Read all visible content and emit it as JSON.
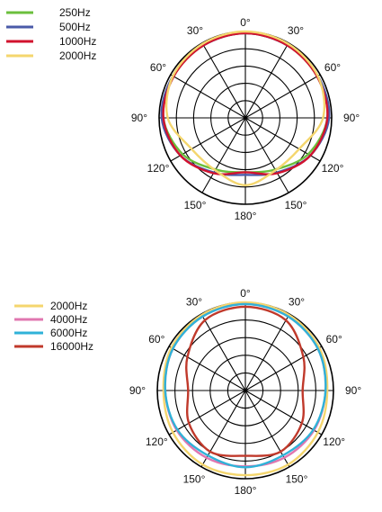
{
  "chart_data": [
    {
      "type": "polar",
      "title": "",
      "angle_unit": "deg",
      "angle_ticks": [
        {
          "deg": 0,
          "label": "0°"
        },
        {
          "deg": 30,
          "label": "30°"
        },
        {
          "deg": 60,
          "label": "60°"
        },
        {
          "deg": 90,
          "label": "90°"
        },
        {
          "deg": 120,
          "label": "120°"
        },
        {
          "deg": 150,
          "label": "150°"
        },
        {
          "deg": 180,
          "label": "180°"
        },
        {
          "deg": 210,
          "label": "150°"
        },
        {
          "deg": 240,
          "label": "120°"
        },
        {
          "deg": 270,
          "label": "90°"
        },
        {
          "deg": 300,
          "label": "60°"
        },
        {
          "deg": 330,
          "label": "30°"
        }
      ],
      "rings": 5,
      "spokes": 12,
      "grid": true,
      "legend_position": "top-left",
      "angles": [
        0,
        30,
        60,
        90,
        120,
        150,
        180,
        210,
        240,
        270,
        300,
        330
      ],
      "series": [
        {
          "name": "250Hz",
          "color": "#6bbf3c",
          "values": [
            0.98,
            0.97,
            0.96,
            0.95,
            0.84,
            0.69,
            0.63,
            0.69,
            0.84,
            0.95,
            0.96,
            0.97
          ]
        },
        {
          "name": "500Hz",
          "color": "#4a5aa8",
          "values": [
            0.98,
            0.97,
            0.97,
            0.97,
            0.87,
            0.73,
            0.66,
            0.73,
            0.87,
            0.97,
            0.97,
            0.97
          ]
        },
        {
          "name": "1000Hz",
          "color": "#d2122e",
          "values": [
            0.98,
            0.97,
            0.96,
            0.95,
            0.87,
            0.74,
            0.63,
            0.74,
            0.87,
            0.95,
            0.96,
            0.97
          ]
        },
        {
          "name": "2000Hz",
          "color": "#f4d66e",
          "values": [
            1.0,
            0.99,
            0.97,
            0.9,
            0.72,
            0.7,
            0.78,
            0.7,
            0.72,
            0.9,
            0.97,
            0.99
          ]
        }
      ]
    },
    {
      "type": "polar",
      "title": "",
      "angle_unit": "deg",
      "angle_ticks": [
        {
          "deg": 0,
          "label": "0°"
        },
        {
          "deg": 30,
          "label": "30°"
        },
        {
          "deg": 60,
          "label": "60°"
        },
        {
          "deg": 90,
          "label": "90°"
        },
        {
          "deg": 120,
          "label": "120°"
        },
        {
          "deg": 150,
          "label": "150°"
        },
        {
          "deg": 180,
          "label": "180°"
        },
        {
          "deg": 210,
          "label": "150°"
        },
        {
          "deg": 240,
          "label": "120°"
        },
        {
          "deg": 270,
          "label": "90°"
        },
        {
          "deg": 300,
          "label": "60°"
        },
        {
          "deg": 330,
          "label": "30°"
        }
      ],
      "rings": 5,
      "spokes": 12,
      "grid": true,
      "legend_position": "top-left",
      "angles": [
        0,
        30,
        60,
        90,
        120,
        150,
        180,
        210,
        240,
        270,
        300,
        330
      ],
      "series": [
        {
          "name": "2000Hz",
          "color": "#f4d66e",
          "values": [
            1.0,
            0.99,
            0.97,
            0.93,
            0.95,
            0.97,
            0.96,
            0.97,
            0.95,
            0.93,
            0.97,
            0.99
          ]
        },
        {
          "name": "4000Hz",
          "color": "#e077b0",
          "values": [
            0.98,
            0.97,
            0.95,
            0.91,
            0.9,
            0.88,
            0.86,
            0.88,
            0.9,
            0.91,
            0.95,
            0.97
          ]
        },
        {
          "name": "6000Hz",
          "color": "#2fb2d8",
          "values": [
            0.98,
            0.97,
            0.95,
            0.91,
            0.89,
            0.85,
            0.87,
            0.85,
            0.89,
            0.91,
            0.95,
            0.97
          ]
        },
        {
          "name": "16000Hz",
          "color": "#c0392b",
          "values": [
            0.95,
            0.92,
            0.76,
            0.65,
            0.74,
            0.8,
            0.74,
            0.8,
            0.74,
            0.65,
            0.76,
            0.92
          ]
        }
      ]
    }
  ]
}
